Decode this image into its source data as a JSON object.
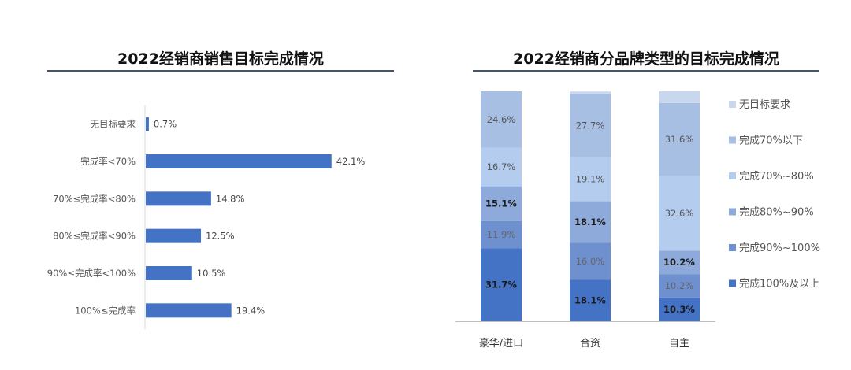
{
  "chart_data": [
    {
      "type": "bar",
      "orientation": "horizontal",
      "title": "2022经销商销售目标完成情况",
      "categories": [
        "无目标要求",
        "完成率<70%",
        "70%≤完成率<80%",
        "80%≤完成率<90%",
        "90%≤完成率<100%",
        "100%≤完成率"
      ],
      "values": [
        0.7,
        42.1,
        14.8,
        12.5,
        10.5,
        19.4
      ],
      "value_labels": [
        "0.7%",
        "42.1%",
        "14.8%",
        "12.5%",
        "10.5%",
        "19.4%"
      ],
      "color": "#4472c4",
      "xlim": [
        0,
        45
      ]
    },
    {
      "type": "bar",
      "stacked": true,
      "title": "2022经销商分品牌类型的目标完成情况",
      "categories": [
        "豪华/进口",
        "合资",
        "自主"
      ],
      "series": [
        {
          "name": "完成100%及以上",
          "color": "#4472c4",
          "values": [
            31.7,
            18.1,
            10.3
          ],
          "labels": [
            "31.7%",
            "18.1%",
            "10.3%"
          ],
          "label_color": "#1a1a1a",
          "bold": true
        },
        {
          "name": "完成90%~100%",
          "color": "#6f90cf",
          "values": [
            11.9,
            16.0,
            10.2
          ],
          "labels": [
            "11.9%",
            "16.0%",
            "10.2%"
          ],
          "label_color": "#666666",
          "bold": false
        },
        {
          "name": "完成80%~90%",
          "color": "#8eaadb",
          "values": [
            15.1,
            18.1,
            10.2
          ],
          "labels": [
            "15.1%",
            "18.1%",
            "10.2%"
          ],
          "label_color": "#1a1a1a",
          "bold": true
        },
        {
          "name": "完成70%~80%",
          "color": "#b4cdef",
          "values": [
            16.7,
            19.1,
            32.6
          ],
          "labels": [
            "16.7%",
            "19.1%",
            "32.6%"
          ],
          "label_color": "#555555",
          "bold": false
        },
        {
          "name": "完成70%以下",
          "color": "#a7bfe3",
          "values": [
            24.6,
            27.7,
            31.6
          ],
          "labels": [
            "24.6%",
            "27.7%",
            "31.6%"
          ],
          "label_color": "#555555",
          "bold": false
        },
        {
          "name": "无目标要求",
          "color": "#c9d7ee",
          "values": [
            0.0,
            0.9,
            5.1
          ],
          "labels": [
            "",
            "",
            ""
          ],
          "label_color": "#555555",
          "bold": false
        }
      ],
      "legend_order": [
        "无目标要求",
        "完成70%以下",
        "完成70%~80%",
        "完成80%~90%",
        "完成90%~100%",
        "完成100%及以上"
      ],
      "legend_position": "right",
      "ylim": [
        0,
        100
      ]
    }
  ]
}
